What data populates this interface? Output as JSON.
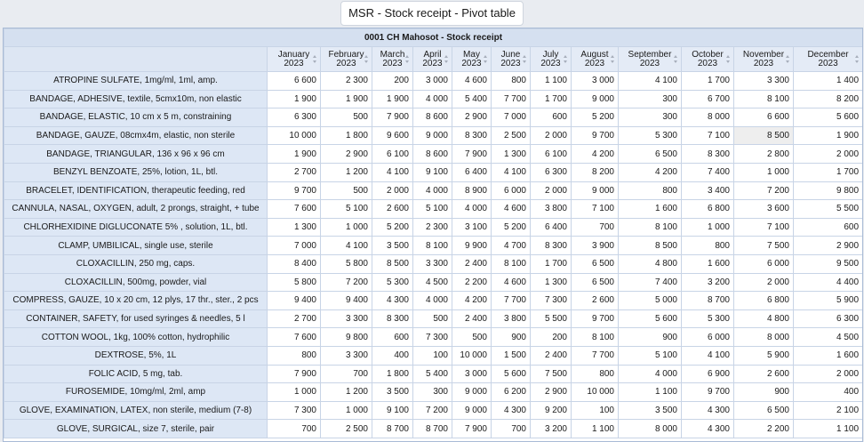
{
  "page_title": "MSR - Stock receipt - Pivot table",
  "table_caption": "0001 CH Mahosot - Stock receipt",
  "months": [
    {
      "name": "January",
      "year": "2023"
    },
    {
      "name": "February",
      "year": "2023"
    },
    {
      "name": "March",
      "year": "2023"
    },
    {
      "name": "April",
      "year": "2023"
    },
    {
      "name": "May",
      "year": "2023"
    },
    {
      "name": "June",
      "year": "2023"
    },
    {
      "name": "July",
      "year": "2023"
    },
    {
      "name": "August",
      "year": "2023"
    },
    {
      "name": "September",
      "year": "2023"
    },
    {
      "name": "October",
      "year": "2023"
    },
    {
      "name": "November",
      "year": "2023"
    },
    {
      "name": "December",
      "year": "2023"
    }
  ],
  "rows": [
    {
      "item": "ATROPINE SULFATE, 1mg/ml, 1ml, amp.",
      "values": [
        "6 600",
        "2 300",
        "200",
        "3 000",
        "4 600",
        "800",
        "1 100",
        "3 000",
        "4 100",
        "1 700",
        "3 300",
        "1 400"
      ]
    },
    {
      "item": "BANDAGE, ADHESIVE, textile, 5cmx10m, non elastic",
      "values": [
        "1 900",
        "1 900",
        "1 900",
        "4 000",
        "5 400",
        "7 700",
        "1 700",
        "9 000",
        "300",
        "6 700",
        "8 100",
        "8 200"
      ]
    },
    {
      "item": "BANDAGE, ELASTIC, 10 cm x 5 m, constraining",
      "values": [
        "6 300",
        "500",
        "7 900",
        "8 600",
        "2 900",
        "7 000",
        "600",
        "5 200",
        "300",
        "8 000",
        "6 600",
        "5 600"
      ]
    },
    {
      "item": "BANDAGE, GAUZE, 08cmx4m, elastic, non sterile",
      "values": [
        "10 000",
        "1 800",
        "9 600",
        "9 000",
        "8 300",
        "2 500",
        "2 000",
        "9 700",
        "5 300",
        "7 100",
        "8 500",
        "1 900"
      ]
    },
    {
      "item": "BANDAGE, TRIANGULAR, 136 x 96 x 96 cm",
      "values": [
        "1 900",
        "2 900",
        "6 100",
        "8 600",
        "7 900",
        "1 300",
        "6 100",
        "4 200",
        "6 500",
        "8 300",
        "2 800",
        "2 000"
      ]
    },
    {
      "item": "BENZYL BENZOATE, 25%, lotion, 1L, btl.",
      "values": [
        "2 700",
        "1 200",
        "4 100",
        "9 100",
        "6 400",
        "4 100",
        "6 300",
        "8 200",
        "4 200",
        "7 400",
        "1 000",
        "1 700"
      ]
    },
    {
      "item": "BRACELET, IDENTIFICATION, therapeutic feeding, red",
      "values": [
        "9 700",
        "500",
        "2 000",
        "4 000",
        "8 900",
        "6 000",
        "2 000",
        "9 000",
        "800",
        "3 400",
        "7 200",
        "9 800"
      ]
    },
    {
      "item": "CANNULA, NASAL, OXYGEN, adult, 2 prongs, straight, + tube",
      "values": [
        "7 600",
        "5 100",
        "2 600",
        "5 100",
        "4 000",
        "4 600",
        "3 800",
        "7 100",
        "1 600",
        "6 800",
        "3 600",
        "5 500"
      ]
    },
    {
      "item": "CHLORHEXIDINE DIGLUCONATE 5% , solution, 1L, btl.",
      "values": [
        "1 300",
        "1 000",
        "5 200",
        "2 300",
        "3 100",
        "5 200",
        "6 400",
        "700",
        "8 100",
        "1 000",
        "7 100",
        "600"
      ]
    },
    {
      "item": "CLAMP, UMBILICAL, single use, sterile",
      "values": [
        "7 000",
        "4 100",
        "3 500",
        "8 100",
        "9 900",
        "4 700",
        "8 300",
        "3 900",
        "8 500",
        "800",
        "7 500",
        "2 900"
      ]
    },
    {
      "item": "CLOXACILLIN, 250 mg, caps.",
      "values": [
        "8 400",
        "5 800",
        "8 500",
        "3 300",
        "2 400",
        "8 100",
        "1 700",
        "6 500",
        "4 800",
        "1 600",
        "6 000",
        "9 500"
      ]
    },
    {
      "item": "CLOXACILLIN, 500mg, powder, vial",
      "values": [
        "5 800",
        "7 200",
        "5 300",
        "4 500",
        "2 200",
        "4 600",
        "1 300",
        "6 500",
        "7 400",
        "3 200",
        "2 000",
        "4 400"
      ]
    },
    {
      "item": "COMPRESS, GAUZE, 10 x 20 cm, 12 plys, 17 thr., ster., 2 pcs",
      "values": [
        "9 400",
        "9 400",
        "4 300",
        "4 000",
        "4 200",
        "7 700",
        "7 300",
        "2 600",
        "5 000",
        "8 700",
        "6 800",
        "5 900"
      ]
    },
    {
      "item": "CONTAINER, SAFETY, for used syringes & needles, 5 l",
      "values": [
        "2 700",
        "3 300",
        "8 300",
        "500",
        "2 400",
        "3 800",
        "5 500",
        "9 700",
        "5 600",
        "5 300",
        "4 800",
        "6 300"
      ]
    },
    {
      "item": "COTTON WOOL, 1kg, 100% cotton, hydrophilic",
      "values": [
        "7 600",
        "9 800",
        "600",
        "7 300",
        "500",
        "900",
        "200",
        "8 100",
        "900",
        "6 000",
        "8 000",
        "4 500"
      ]
    },
    {
      "item": "DEXTROSE, 5%, 1L",
      "values": [
        "800",
        "3 300",
        "400",
        "100",
        "10 000",
        "1 500",
        "2 400",
        "7 700",
        "5 100",
        "4 100",
        "5 900",
        "1 600"
      ]
    },
    {
      "item": "FOLIC ACID, 5 mg, tab.",
      "values": [
        "7 900",
        "700",
        "1 800",
        "5 400",
        "3 000",
        "5 600",
        "7 500",
        "800",
        "4 000",
        "6 900",
        "2 600",
        "2 000"
      ]
    },
    {
      "item": "FUROSEMIDE, 10mg/ml, 2ml, amp",
      "values": [
        "1 000",
        "1 200",
        "3 500",
        "300",
        "9 000",
        "6 200",
        "2 900",
        "10 000",
        "1 100",
        "9 700",
        "900",
        "400"
      ]
    },
    {
      "item": "GLOVE, EXAMINATION, LATEX, non sterile, medium (7-8)",
      "values": [
        "7 300",
        "1 000",
        "9 100",
        "7 200",
        "9 000",
        "4 300",
        "9 200",
        "100",
        "3 500",
        "4 300",
        "6 500",
        "2 100"
      ]
    },
    {
      "item": "GLOVE, SURGICAL, size 7, sterile, pair",
      "values": [
        "700",
        "2 500",
        "8 700",
        "8 700",
        "7 900",
        "700",
        "3 200",
        "1 100",
        "8 000",
        "4 300",
        "2 200",
        "1 100"
      ]
    }
  ]
}
